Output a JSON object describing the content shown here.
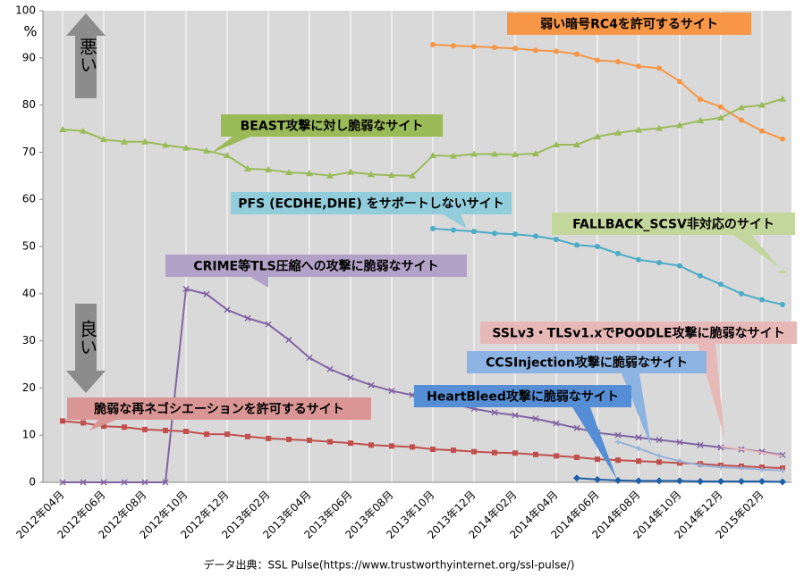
{
  "chart_data": {
    "type": "line",
    "y_label": "%",
    "good_label": "良い",
    "bad_label": "悪い",
    "source": "データ出典：SSL Pulse(https://www.trustworthyinternet.org/ssl-pulse/)",
    "categories": [
      "2012年04月",
      null,
      "2012年06月",
      null,
      "2012年08月",
      null,
      "2012年10月",
      null,
      "2012年12月",
      null,
      "2013年02月",
      null,
      "2013年04月",
      null,
      "2013年06月",
      null,
      "2013年08月",
      null,
      "2013年10月",
      null,
      "2013年12月",
      null,
      "2014年02月",
      null,
      "2014年04月",
      null,
      "2014年06月",
      null,
      "2014年08月",
      null,
      "2014年10月",
      null,
      "2014年12月",
      null,
      "2015年02月",
      null
    ],
    "ylim": [
      0,
      100
    ],
    "yticks": [
      0,
      10,
      20,
      30,
      40,
      50,
      60,
      70,
      80,
      90,
      100
    ],
    "series": [
      {
        "name": "弱い暗号RC4を許可するサイト",
        "color": "#f79646",
        "marker": "circle",
        "values": [
          null,
          null,
          null,
          null,
          null,
          null,
          null,
          null,
          null,
          null,
          null,
          null,
          null,
          null,
          null,
          null,
          null,
          null,
          92.8,
          92.6,
          92.4,
          92.2,
          92.0,
          91.6,
          91.4,
          90.8,
          89.5,
          89.2,
          88.2,
          87.8,
          85.0,
          81.2,
          79.6,
          76.8,
          74.5,
          72.8
        ]
      },
      {
        "name": "BEAST攻撃に対し脆弱なサイト",
        "color": "#9bbb59",
        "marker": "triangle",
        "values": [
          74.8,
          74.5,
          72.7,
          72.2,
          72.2,
          71.5,
          70.9,
          70.3,
          69.3,
          66.5,
          66.3,
          65.7,
          65.5,
          65.0,
          65.8,
          65.3,
          65.1,
          65.0,
          69.3,
          69.2,
          69.6,
          69.6,
          69.5,
          69.7,
          71.6,
          71.6,
          73.3,
          74.1,
          74.7,
          75.1,
          75.7,
          76.7,
          77.3,
          79.5,
          80.0,
          81.3
        ]
      },
      {
        "name": "PFS (ECDHE,DHE) をサポートしないサイト",
        "color": "#4bacc6",
        "marker": "circle",
        "values": [
          null,
          null,
          null,
          null,
          null,
          null,
          null,
          null,
          null,
          null,
          null,
          null,
          null,
          null,
          null,
          null,
          null,
          null,
          53.8,
          53.5,
          53.2,
          52.8,
          52.6,
          52.2,
          51.5,
          50.3,
          50.0,
          48.5,
          47.2,
          46.6,
          45.9,
          43.8,
          42.0,
          40.0,
          38.7,
          37.7
        ]
      },
      {
        "name": "FALLBACK_SCSV非対応のサイト",
        "color": "#c3d69b",
        "marker": "dash",
        "values": [
          null,
          null,
          null,
          null,
          null,
          null,
          null,
          null,
          null,
          null,
          null,
          null,
          null,
          null,
          null,
          null,
          null,
          null,
          null,
          null,
          null,
          null,
          null,
          null,
          null,
          null,
          null,
          null,
          null,
          null,
          null,
          null,
          null,
          null,
          null,
          44.6
        ]
      },
      {
        "name": "CRIME等TLS圧縮への攻撃に脆弱なサイト",
        "color": "#8064a2",
        "marker": "x",
        "values": [
          0,
          0,
          0,
          0,
          0,
          0,
          41.0,
          39.9,
          36.6,
          34.8,
          33.5,
          30.2,
          26.4,
          24.0,
          22.2,
          20.6,
          19.4,
          18.5,
          17.6,
          16.6,
          15.6,
          14.8,
          14.2,
          13.5,
          12.5,
          11.5,
          10.5,
          10.0,
          9.5,
          9.0,
          8.5,
          7.9,
          7.4,
          7.0,
          6.5,
          5.8
        ]
      },
      {
        "name": "脆弱な再ネゴシエーションを許可するサイト",
        "color": "#c0504d",
        "marker": "square",
        "values": [
          13.0,
          12.6,
          11.9,
          11.7,
          11.2,
          11.0,
          10.8,
          10.2,
          10.2,
          9.7,
          9.3,
          9.1,
          8.9,
          8.6,
          8.3,
          7.9,
          7.7,
          7.5,
          7.0,
          6.8,
          6.5,
          6.3,
          6.2,
          5.9,
          5.6,
          5.3,
          4.9,
          4.7,
          4.5,
          4.3,
          4.1,
          3.9,
          3.6,
          3.4,
          3.2,
          3.0
        ]
      },
      {
        "name": "SSLv3・TLSv1.xでPOODLE攻撃に脆弱なサイト",
        "color": "#e6b9b8",
        "marker": "none",
        "values": [
          null,
          null,
          null,
          null,
          null,
          null,
          null,
          null,
          null,
          null,
          null,
          null,
          null,
          null,
          null,
          null,
          null,
          null,
          null,
          null,
          null,
          null,
          null,
          null,
          null,
          null,
          null,
          null,
          null,
          null,
          null,
          null,
          7.6,
          7.0,
          6.3,
          5.6
        ]
      },
      {
        "name": "CCSInjection攻撃に脆弱なサイト",
        "color": "#95b3d7",
        "marker": "plus",
        "values": [
          null,
          null,
          null,
          null,
          null,
          null,
          null,
          null,
          null,
          null,
          null,
          null,
          null,
          null,
          null,
          null,
          null,
          null,
          null,
          null,
          null,
          null,
          null,
          null,
          null,
          null,
          null,
          8.6,
          7.2,
          5.6,
          4.5,
          3.6,
          3.2,
          3.0,
          2.7,
          2.5
        ]
      },
      {
        "name": "HeartBleed攻撃に脆弱なサイト",
        "color": "#1f5fa8",
        "marker": "diamond",
        "values": [
          null,
          null,
          null,
          null,
          null,
          null,
          null,
          null,
          null,
          null,
          null,
          null,
          null,
          null,
          null,
          null,
          null,
          null,
          null,
          null,
          null,
          null,
          null,
          null,
          null,
          0.9,
          0.6,
          0.4,
          0.3,
          0.3,
          0.3,
          0.2,
          0.2,
          0.2,
          0.2,
          0.1
        ]
      }
    ]
  }
}
